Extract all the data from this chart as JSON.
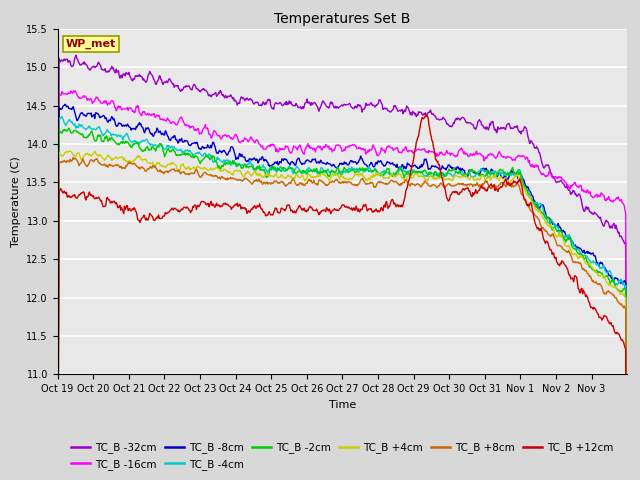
{
  "title": "Temperatures Set B",
  "xlabel": "Time",
  "ylabel": "Temperature (C)",
  "ylim": [
    11.0,
    15.5
  ],
  "x_tick_labels": [
    "Oct 19",
    "Oct 20",
    "Oct 21",
    "Oct 22",
    "Oct 23",
    "Oct 24",
    "Oct 25",
    "Oct 26",
    "Oct 27",
    "Oct 28",
    "Oct 29",
    "Oct 30",
    "Oct 31",
    "Nov 1",
    "Nov 2",
    "Nov 3"
  ],
  "wp_met_label": "WP_met",
  "wp_met_color": "#990000",
  "wp_met_bg": "#ffff99",
  "wp_met_edge": "#999900",
  "series": [
    {
      "label": "TC_B -32cm",
      "color": "#9900cc"
    },
    {
      "label": "TC_B -16cm",
      "color": "#ff00ff"
    },
    {
      "label": "TC_B -8cm",
      "color": "#0000cc"
    },
    {
      "label": "TC_B -4cm",
      "color": "#00cccc"
    },
    {
      "label": "TC_B -2cm",
      "color": "#00cc00"
    },
    {
      "label": "TC_B +4cm",
      "color": "#cccc00"
    },
    {
      "label": "TC_B +8cm",
      "color": "#cc6600"
    },
    {
      "label": "TC_B +12cm",
      "color": "#cc0000"
    }
  ],
  "fig_facecolor": "#d8d8d8",
  "ax_facecolor": "#e8e8e8",
  "grid_color": "#ffffff",
  "title_fontsize": 10,
  "tick_fontsize": 7,
  "label_fontsize": 8,
  "legend_fontsize": 7.5
}
